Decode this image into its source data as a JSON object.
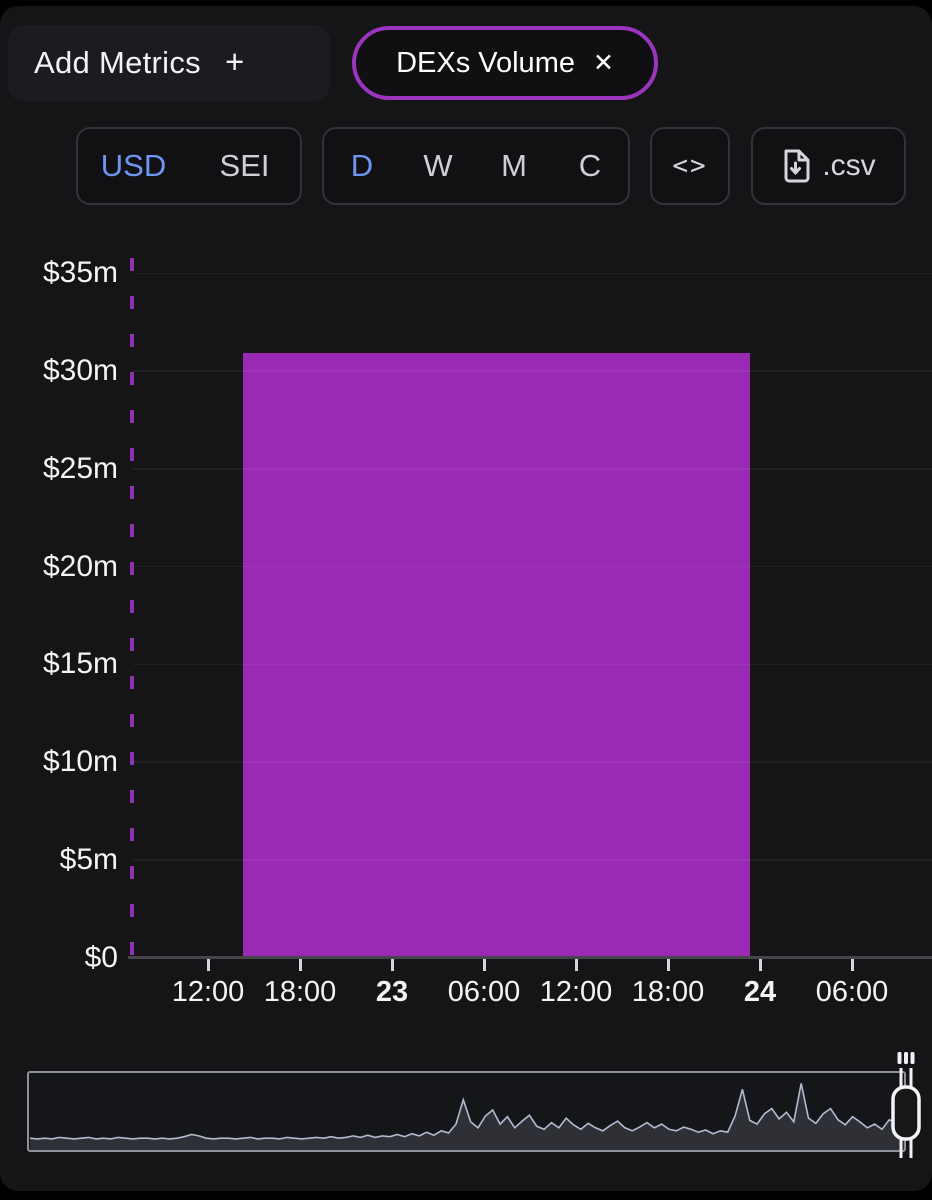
{
  "toolbar": {
    "add_metrics": {
      "label": "Add Metrics",
      "plus_icon": "+"
    },
    "metric_pill": {
      "label": "DEXs Volume",
      "close_icon": "✕"
    },
    "currency": {
      "options": [
        "USD",
        "SEI"
      ],
      "selected": "USD"
    },
    "period": {
      "options": [
        "D",
        "W",
        "M",
        "C"
      ],
      "selected": "D"
    },
    "embed": {
      "icon": "<>"
    },
    "export_csv": {
      "label": ".csv"
    }
  },
  "colors": {
    "page_background": "#000000",
    "card_background": "#151518",
    "pill_border_purple": "#9b35bd",
    "active_blue": "#6e96f0",
    "inactive_gray": "#cdd1d6",
    "bar_purple": "#9a2ab4",
    "axis_dash_purple": "#8f32af",
    "navigator_border": "#8d9199",
    "navigator_line": "#b2bacf"
  },
  "chart_data": {
    "type": "bar",
    "title": "DEXs Volume",
    "currency": "USD",
    "interval": "D",
    "ylim_musd": [
      0,
      35.7
    ],
    "grid": true,
    "y_axis": {
      "ticks": [
        {
          "label": "$35m",
          "value": 35
        },
        {
          "label": "$30m",
          "value": 30
        },
        {
          "label": "$25m",
          "value": 25
        },
        {
          "label": "$20m",
          "value": 20
        },
        {
          "label": "$15m",
          "value": 15
        },
        {
          "label": "$10m",
          "value": 10
        },
        {
          "label": "$5m",
          "value": 5
        },
        {
          "label": "$0",
          "value": 0
        }
      ]
    },
    "x_axis": {
      "ticks": [
        {
          "label": "12:00",
          "bold": false
        },
        {
          "label": "18:00",
          "bold": false
        },
        {
          "label": "23",
          "bold": true
        },
        {
          "label": "06:00",
          "bold": false
        },
        {
          "label": "12:00",
          "bold": false
        },
        {
          "label": "18:00",
          "bold": false
        },
        {
          "label": "24",
          "bold": true
        },
        {
          "label": "06:00",
          "bold": false
        }
      ]
    },
    "bars": [
      {
        "day_label": "23",
        "value_musd": 30.9
      }
    ],
    "navigator": {
      "values_pct": [
        16,
        15,
        16,
        15,
        17,
        16,
        15,
        16,
        17,
        15,
        16,
        15,
        17,
        16,
        15,
        16,
        16,
        15,
        16,
        15,
        16,
        18,
        21,
        19,
        16,
        15,
        16,
        16,
        15,
        16,
        17,
        15,
        16,
        16,
        15,
        17,
        16,
        15,
        16,
        17,
        16,
        18,
        16,
        17,
        19,
        17,
        20,
        17,
        19,
        18,
        21,
        18,
        22,
        19,
        24,
        20,
        26,
        23,
        35,
        68,
        38,
        30,
        46,
        54,
        35,
        45,
        30,
        39,
        47,
        32,
        28,
        37,
        30,
        43,
        34,
        28,
        36,
        30,
        26,
        33,
        39,
        30,
        26,
        31,
        37,
        30,
        35,
        28,
        26,
        31,
        28,
        24,
        27,
        22,
        26,
        24,
        46,
        82,
        40,
        35,
        49,
        56,
        42,
        51,
        38,
        90,
        43,
        36,
        49,
        56,
        41,
        34,
        45,
        38,
        30,
        35,
        28,
        41,
        36,
        63
      ]
    }
  }
}
